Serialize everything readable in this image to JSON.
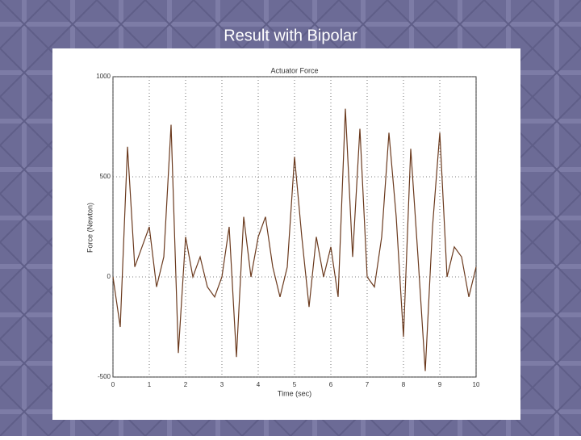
{
  "slide": {
    "title": "Result with Bipolar"
  },
  "chart_data": {
    "type": "line",
    "title": "Actuator Force",
    "x_label": "Time (sec)",
    "y_label": "Force (Newton)",
    "x": [
      0,
      0.2,
      0.4,
      0.6,
      0.8,
      1,
      1.2,
      1.4,
      1.6,
      1.8,
      2,
      2.2,
      2.4,
      2.6,
      2.8,
      3,
      3.2,
      3.4,
      3.6,
      3.8,
      4,
      4.2,
      4.4,
      4.6,
      4.8,
      5,
      5.2,
      5.4,
      5.6,
      5.8,
      6,
      6.2,
      6.4,
      6.6,
      6.8,
      7,
      7.2,
      7.4,
      7.6,
      7.8,
      8,
      8.2,
      8.4,
      8.6,
      8.8,
      9,
      9.2,
      9.4,
      9.6,
      9.8,
      10
    ],
    "series": [
      {
        "color": "#6b3a1e",
        "values": [
          0,
          -250,
          650,
          50,
          150,
          250,
          -50,
          100,
          760,
          -380,
          200,
          0,
          100,
          -50,
          -100,
          0,
          250,
          -400,
          300,
          0,
          200,
          300,
          50,
          -100,
          50,
          600,
          200,
          -150,
          200,
          0,
          150,
          -100,
          840,
          100,
          740,
          0,
          -50,
          200,
          720,
          300,
          -300,
          640,
          100,
          -470,
          250,
          720,
          0,
          150,
          100,
          -100,
          50
        ]
      }
    ],
    "xlim": [
      0,
      10
    ],
    "xticks": [
      0,
      1,
      2,
      3,
      4,
      5,
      6,
      7,
      8,
      9,
      10
    ],
    "ylim": [
      -500,
      1000
    ],
    "yticks": [
      -500,
      0,
      500,
      1000
    ],
    "grid": true
  }
}
